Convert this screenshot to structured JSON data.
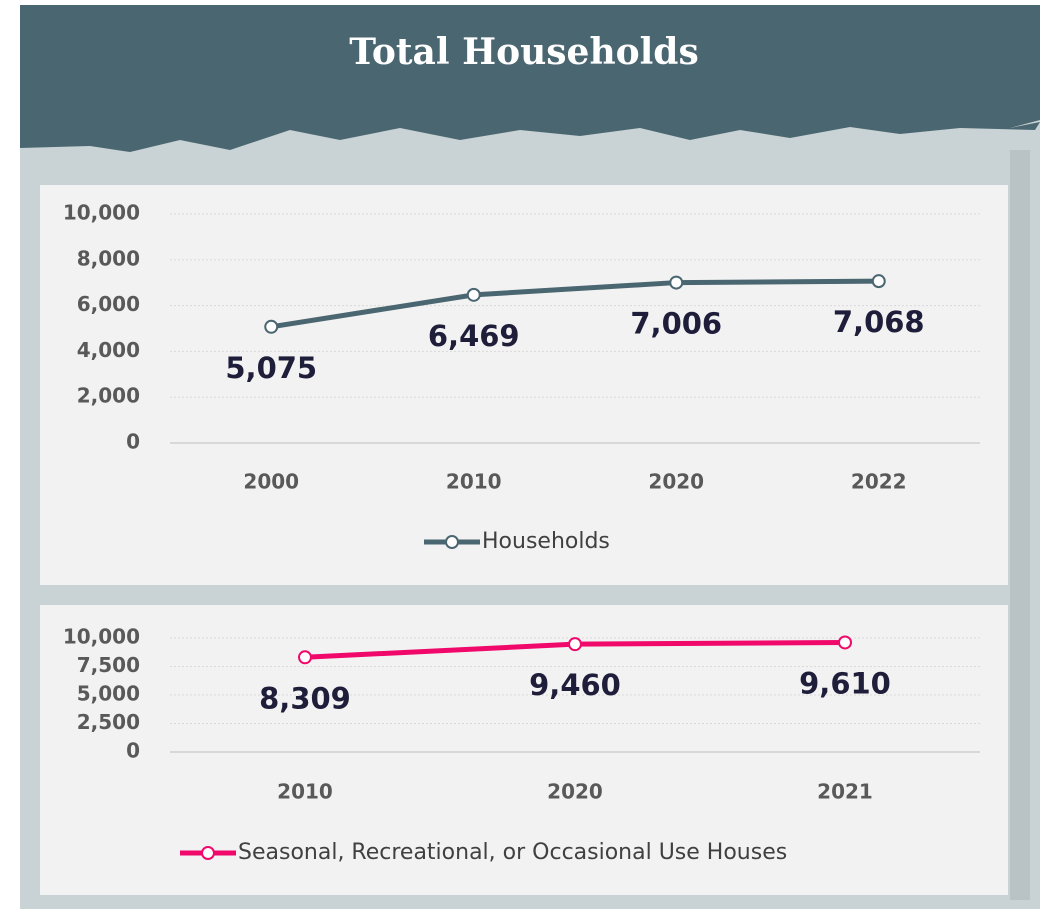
{
  "title": "Total Households",
  "chart_data": [
    {
      "type": "line",
      "categories": [
        "2000",
        "2010",
        "2020",
        "2022"
      ],
      "series": [
        {
          "name": "Households",
          "color": "#4a6670",
          "values": [
            5075,
            6469,
            7006,
            7068
          ],
          "value_labels": [
            "5,075",
            "6,469",
            "7,006",
            "7,068"
          ]
        }
      ],
      "ylim": [
        0,
        10000
      ],
      "yticks": [
        0,
        {
          "value": 2000,
          "label": "2,000"
        },
        {
          "value": 4000,
          "label": "4,000"
        },
        {
          "value": 6000,
          "label": "6,000"
        },
        {
          "value": 8000,
          "label": "8,000"
        },
        {
          "value": 10000,
          "label": "10,000"
        }
      ],
      "grid": true,
      "legend": "bottom"
    },
    {
      "type": "line",
      "categories": [
        "2010",
        "2020",
        "2021"
      ],
      "series": [
        {
          "name": "Seasonal, Recreational, or Occasional Use Houses",
          "color": "#f0086b",
          "values": [
            8309,
            9460,
            9610
          ],
          "value_labels": [
            "8,309",
            "9,460",
            "9,610"
          ]
        }
      ],
      "ylim": [
        0,
        10000
      ],
      "yticks": [
        0,
        {
          "value": 2500,
          "label": "2,500"
        },
        {
          "value": 5000,
          "label": "5,000"
        },
        {
          "value": 7500,
          "label": "7,500"
        },
        {
          "value": 10000,
          "label": "10,000"
        }
      ],
      "grid": true,
      "legend": "bottom"
    }
  ]
}
